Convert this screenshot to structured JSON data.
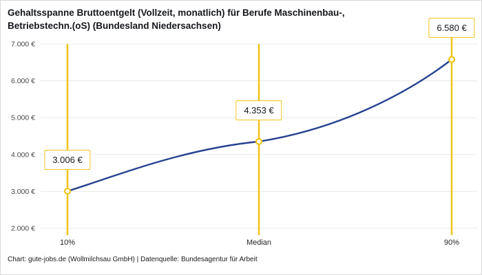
{
  "header": {
    "title": "Gehaltsspanne Bruttoentgelt (Vollzeit, monatlich) für Berufe Maschinenbau-,\nBetriebstechn.(oS) (Bundesland Niedersachsen)"
  },
  "footer": {
    "credit": "Chart: gute-jobs.de (Wollmilchsau GmbH) | Datenquelle: Bundesagentur für Arbeit"
  },
  "chart_data": {
    "type": "line",
    "title": "Gehaltsspanne Bruttoentgelt (Vollzeit, monatlich) für Berufe Maschinenbau-, Betriebstechn.(oS) (Bundesland Niedersachsen)",
    "categories": [
      "10%",
      "Median",
      "90%"
    ],
    "values": [
      3006,
      4353,
      6580
    ],
    "value_labels": [
      "3.006 €",
      "4.353 €",
      "6.580 €"
    ],
    "ylim": [
      2000,
      7000
    ],
    "y_tick_step": 1000,
    "y_tick_suffix": " €",
    "y_tick_labels": [
      "2.000 €",
      "3.000 €",
      "4.000 €",
      "5.000 €",
      "6.000 €",
      "7.000 €"
    ],
    "grid": true,
    "legend": "none",
    "colors": {
      "line": "#26418f",
      "accent": "#f2c41b",
      "grid": "#e8e8e8",
      "text": "#444444",
      "axis_text": "#222222"
    }
  }
}
